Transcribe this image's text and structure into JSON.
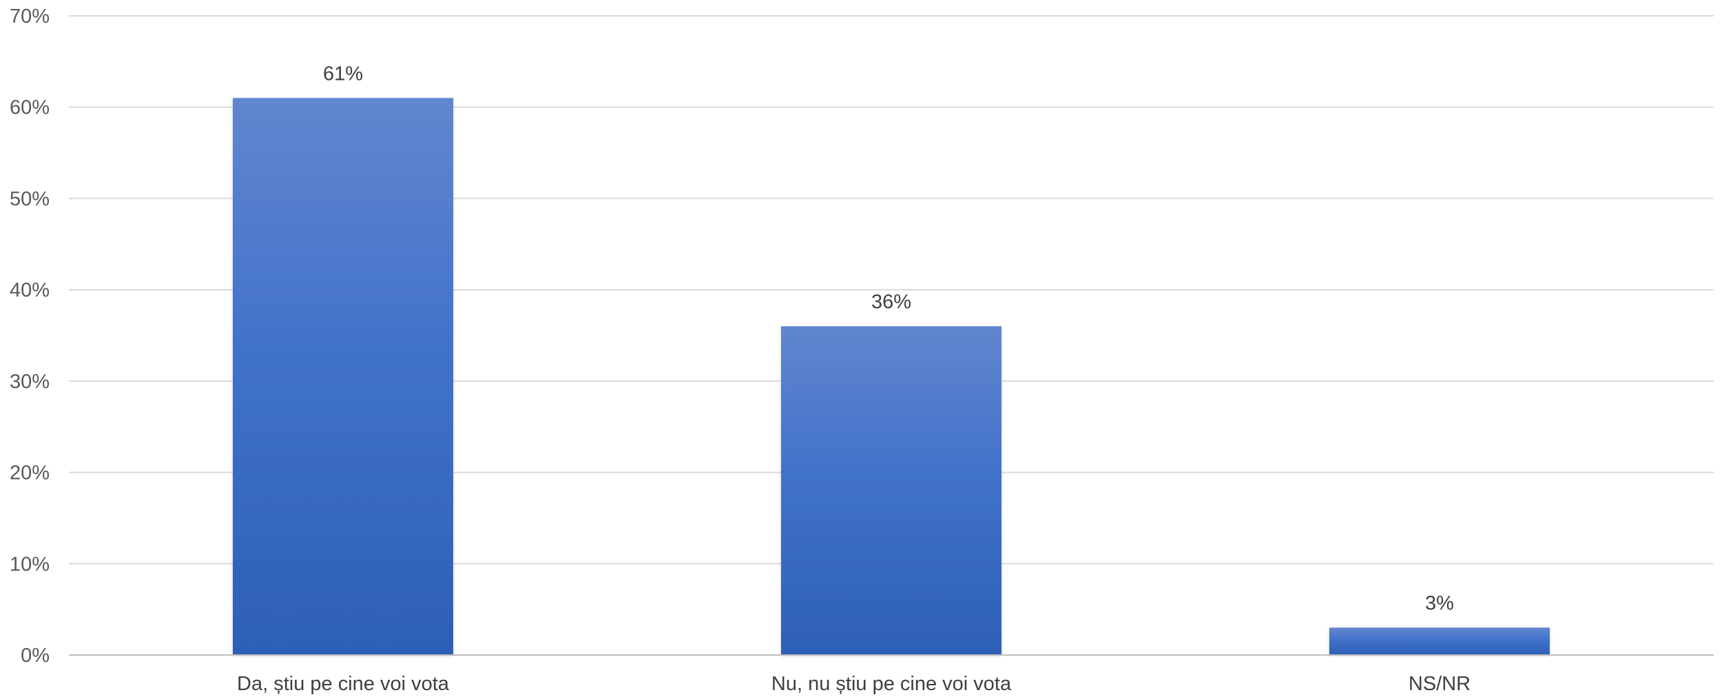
{
  "chart_data": {
    "type": "bar",
    "categories": [
      "Da, știu pe cine voi vota",
      "Nu, nu știu pe cine voi vota",
      "NS/NR"
    ],
    "values": [
      61,
      36,
      3
    ],
    "data_labels": [
      "61%",
      "36%",
      "3%"
    ],
    "y_ticks": [
      0,
      10,
      20,
      30,
      40,
      50,
      60,
      70
    ],
    "y_tick_labels": [
      "0%",
      "10%",
      "20%",
      "30%",
      "40%",
      "50%",
      "60%",
      "70%"
    ],
    "ylim": [
      0,
      70
    ],
    "grid": true,
    "legend": "none",
    "title": "",
    "xlabel": "",
    "ylabel": "",
    "colors": {
      "bar_top": "#6186cf",
      "bar_mid": "#4172ca",
      "bar_bottom": "#2d5fb8",
      "grid": "#d9d9d9",
      "axis": "#bfbfbf",
      "tick_text": "#595959",
      "label_text": "#404040"
    }
  }
}
